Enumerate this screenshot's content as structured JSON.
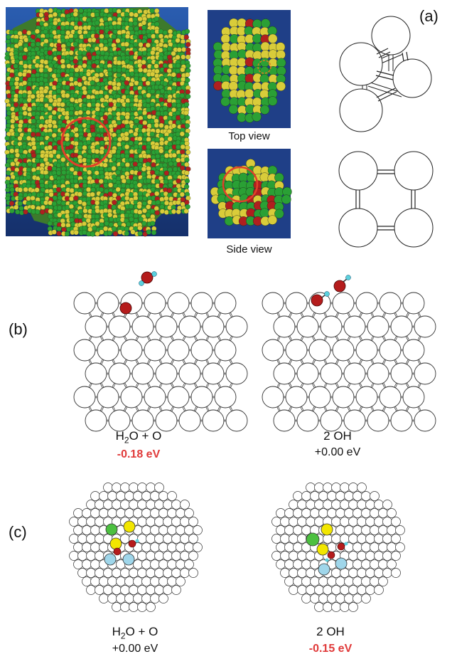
{
  "figure": {
    "panel_a_letter": "(a)",
    "panel_b_letter": "(b)",
    "panel_c_letter": "(c)",
    "top_view_caption": "Top view",
    "side_view_caption": "Side view"
  },
  "panel_b": {
    "left": {
      "species_main": "H",
      "species_sub": "2",
      "species_rest": "O + O",
      "energy": "-0.18  eV",
      "energy_color": "#e03a3a"
    },
    "right": {
      "species": "2 OH",
      "energy": "+0.00 eV",
      "energy_color": "#111111"
    }
  },
  "panel_c": {
    "left": {
      "species_main": "H",
      "species_sub": "2",
      "species_rest": "O + O",
      "energy": "+0.00 eV",
      "energy_color": "#111111"
    },
    "right": {
      "species": "2 OH",
      "energy": "-0.15 eV",
      "energy_color": "#e03a3a"
    }
  },
  "colors": {
    "background_render": "#1e3f86",
    "atom_green": "#2aa035",
    "atom_yellow": "#d9cc3a",
    "atom_red": "#b01f1f",
    "oxygen": "#b51c1c",
    "hydrogen": "#5bd0dc",
    "highlight_circle": "#e0402a",
    "site_green": "#4cc040",
    "site_yellow": "#f2e600",
    "site_blue": "#9fd6ea"
  }
}
